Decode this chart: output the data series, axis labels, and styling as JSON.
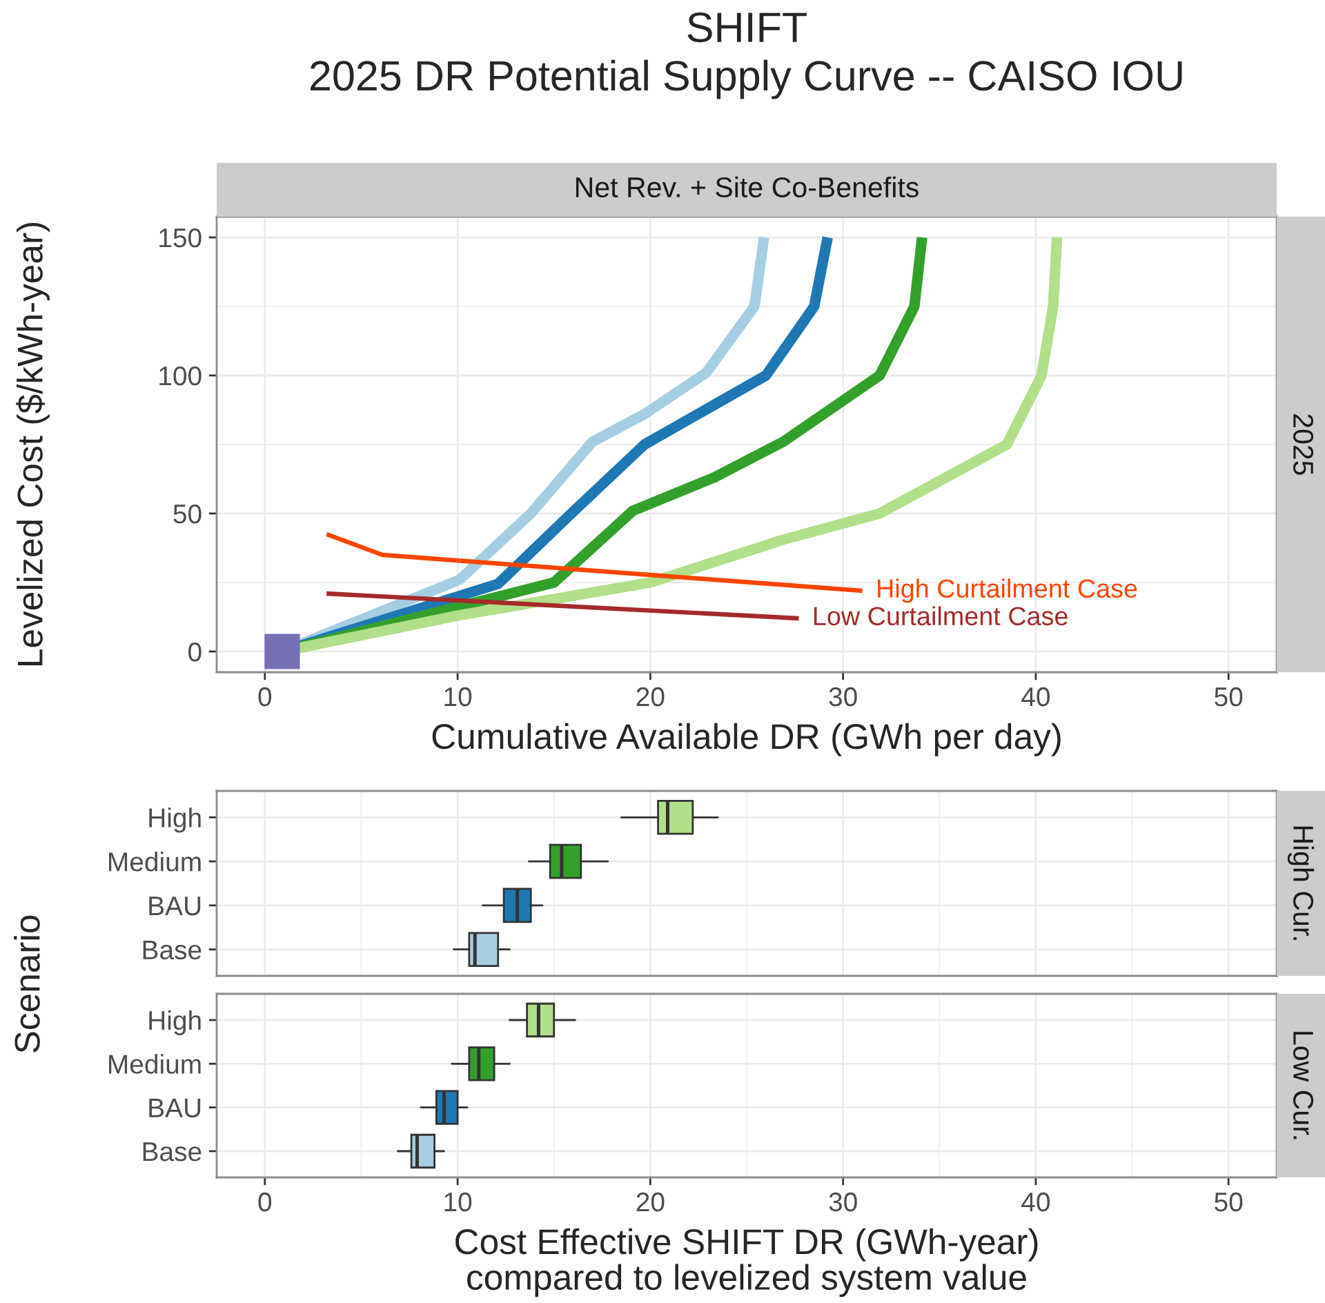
{
  "chart_data": [
    {
      "type": "line",
      "title": "SHIFT\n2025 DR Potential Supply Curve -- CAISO IOU",
      "subtitle": "Net Rev. + Site Co-Benefits",
      "annotations": [
        "2025"
      ],
      "xlabel": "Cumulative Available DR (GWh per day)",
      "ylabel": "Levelized Cost ($/kWh-year)",
      "xlim": [
        -2.5,
        52.5
      ],
      "ylim": [
        -7.5,
        157.5
      ],
      "xticks": [
        0,
        10,
        20,
        30,
        40,
        50
      ],
      "yticks": [
        0,
        50,
        100,
        150
      ],
      "grid": true,
      "series": [
        {
          "type": "line",
          "color": "#a6cee3",
          "x": [
            0.9,
            10.1,
            13.8,
            17.0,
            19.7,
            22.9,
            25.4,
            25.9
          ],
          "values": [
            0,
            26,
            50,
            76,
            86,
            101,
            125,
            150
          ]
        },
        {
          "type": "line",
          "color": "#1f78b4",
          "x": [
            0.9,
            12.1,
            15.9,
            19.7,
            26.0,
            28.5,
            29.2
          ],
          "values": [
            0,
            24.5,
            50,
            75,
            100,
            125,
            150
          ]
        },
        {
          "type": "line",
          "color": "#33a02c",
          "x": [
            0.9,
            15.0,
            19.1,
            23.3,
            26.9,
            31.9,
            33.7,
            34.1
          ],
          "values": [
            0,
            25,
            51,
            63,
            76,
            100,
            125,
            150
          ]
        },
        {
          "type": "line",
          "color": "#b2df8a",
          "x": [
            0.9,
            10.0,
            20.0,
            26.9,
            31.9,
            38.5,
            40.3,
            40.9,
            41.1
          ],
          "values": [
            0,
            13,
            25,
            40.5,
            50,
            75,
            100,
            125,
            150
          ]
        },
        {
          "type": "line",
          "name": "High Curtailment Case",
          "color": "#ff4500",
          "x": [
            3.2,
            6.1,
            31.0
          ],
          "values": [
            42.5,
            35,
            22
          ]
        },
        {
          "type": "line",
          "name": "Low Curtailment Case",
          "color": "#a52a2a",
          "x": [
            3.2,
            27.7
          ],
          "values": [
            21,
            12
          ]
        },
        {
          "type": "scatter",
          "marker": "square",
          "color": "#7570b3",
          "x": [
            0.9
          ],
          "values": [
            0
          ]
        }
      ]
    },
    {
      "type": "box",
      "orientation": "horizontal",
      "categories": [
        "High",
        "Medium",
        "BAU",
        "Base"
      ],
      "colors": [
        "#b2df8a",
        "#33a02c",
        "#1f78b4",
        "#a6cee3"
      ],
      "boxes": [
        {
          "low": 18.5,
          "q1": 20.4,
          "median": 20.9,
          "q3": 22.2,
          "high": 23.5
        },
        {
          "low": 13.7,
          "q1": 14.8,
          "median": 15.4,
          "q3": 16.4,
          "high": 17.8
        },
        {
          "low": 11.3,
          "q1": 12.4,
          "median": 13.1,
          "q3": 13.8,
          "high": 14.4
        },
        {
          "low": 9.8,
          "q1": 10.6,
          "median": 10.9,
          "q3": 12.1,
          "high": 12.7
        }
      ],
      "xlim": [
        -2.5,
        52.5
      ],
      "xticks": [
        0,
        10,
        20,
        30,
        40,
        50
      ],
      "grid": true,
      "tick_labels": "y",
      "ylabel": "Scenario",
      "annotations": [
        "High Cur."
      ]
    },
    {
      "type": "box",
      "orientation": "horizontal",
      "categories": [
        "High",
        "Medium",
        "BAU",
        "Base"
      ],
      "colors": [
        "#b2df8a",
        "#33a02c",
        "#1f78b4",
        "#a6cee3"
      ],
      "boxes": [
        {
          "low": 12.7,
          "q1": 13.6,
          "median": 14.2,
          "q3": 15.0,
          "high": 16.1
        },
        {
          "low": 9.7,
          "q1": 10.6,
          "median": 11.1,
          "q3": 11.9,
          "high": 12.7
        },
        {
          "low": 8.1,
          "q1": 8.9,
          "median": 9.3,
          "q3": 10.0,
          "high": 10.5
        },
        {
          "low": 6.9,
          "q1": 7.6,
          "median": 7.9,
          "q3": 8.8,
          "high": 9.3
        }
      ],
      "xlim": [
        -2.5,
        52.5
      ],
      "xticks": [
        0,
        10,
        20,
        30,
        40,
        50
      ],
      "grid": true,
      "xlabel": "Cost Effective SHIFT DR (GWh-year)\ncompared to levelized system value",
      "annotations": [
        "Low Cur."
      ]
    }
  ]
}
